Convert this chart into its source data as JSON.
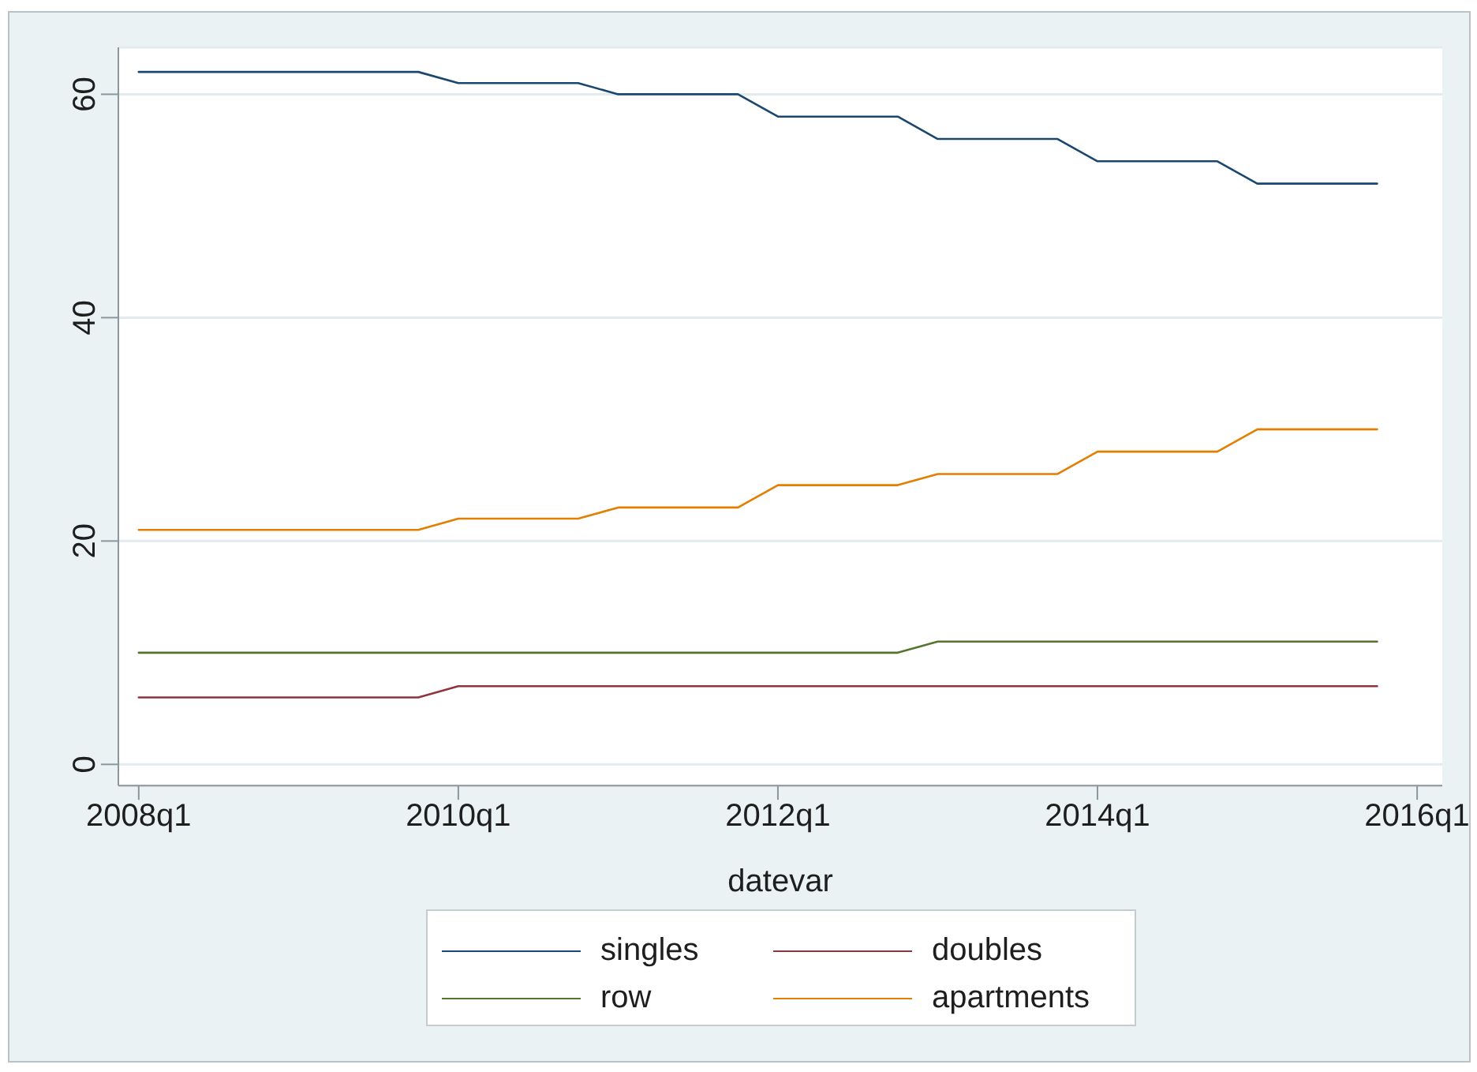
{
  "chart_data": {
    "type": "line",
    "xlabel": "datevar",
    "categories": [
      "2008q1",
      null,
      null,
      null,
      null,
      null,
      null,
      null,
      "2010q1",
      null,
      null,
      null,
      null,
      null,
      null,
      null,
      "2012q1",
      null,
      null,
      null,
      null,
      null,
      null,
      null,
      "2014q1",
      null,
      null,
      null,
      null,
      null,
      null,
      null,
      "2016q1"
    ],
    "series": [
      {
        "name": "singles",
        "color": "#1a476f",
        "values": [
          62,
          62,
          62,
          62,
          62,
          62,
          62,
          62,
          61,
          61,
          61,
          61,
          60,
          60,
          60,
          60,
          58,
          58,
          58,
          58,
          56,
          56,
          56,
          56,
          54,
          54,
          54,
          54,
          52,
          52,
          52,
          52,
          null
        ]
      },
      {
        "name": "doubles",
        "color": "#90353b",
        "values": [
          6,
          6,
          6,
          6,
          6,
          6,
          6,
          6,
          7,
          7,
          7,
          7,
          7,
          7,
          7,
          7,
          7,
          7,
          7,
          7,
          7,
          7,
          7,
          7,
          7,
          7,
          7,
          7,
          7,
          7,
          7,
          7,
          null
        ]
      },
      {
        "name": "row",
        "color": "#55752f",
        "values": [
          10,
          10,
          10,
          10,
          10,
          10,
          10,
          10,
          10,
          10,
          10,
          10,
          10,
          10,
          10,
          10,
          10,
          10,
          10,
          10,
          11,
          11,
          11,
          11,
          11,
          11,
          11,
          11,
          11,
          11,
          11,
          11,
          null
        ]
      },
      {
        "name": "apartments",
        "color": "#e37e00",
        "values": [
          21,
          21,
          21,
          21,
          21,
          21,
          21,
          21,
          22,
          22,
          22,
          22,
          23,
          23,
          23,
          23,
          25,
          25,
          25,
          25,
          26,
          26,
          26,
          26,
          28,
          28,
          28,
          28,
          30,
          30,
          30,
          30,
          null
        ]
      }
    ],
    "ylim": [
      -1.9,
      64.2
    ],
    "yticks": [
      0,
      20,
      40,
      60
    ],
    "grid": "y",
    "legend": "bottom"
  }
}
